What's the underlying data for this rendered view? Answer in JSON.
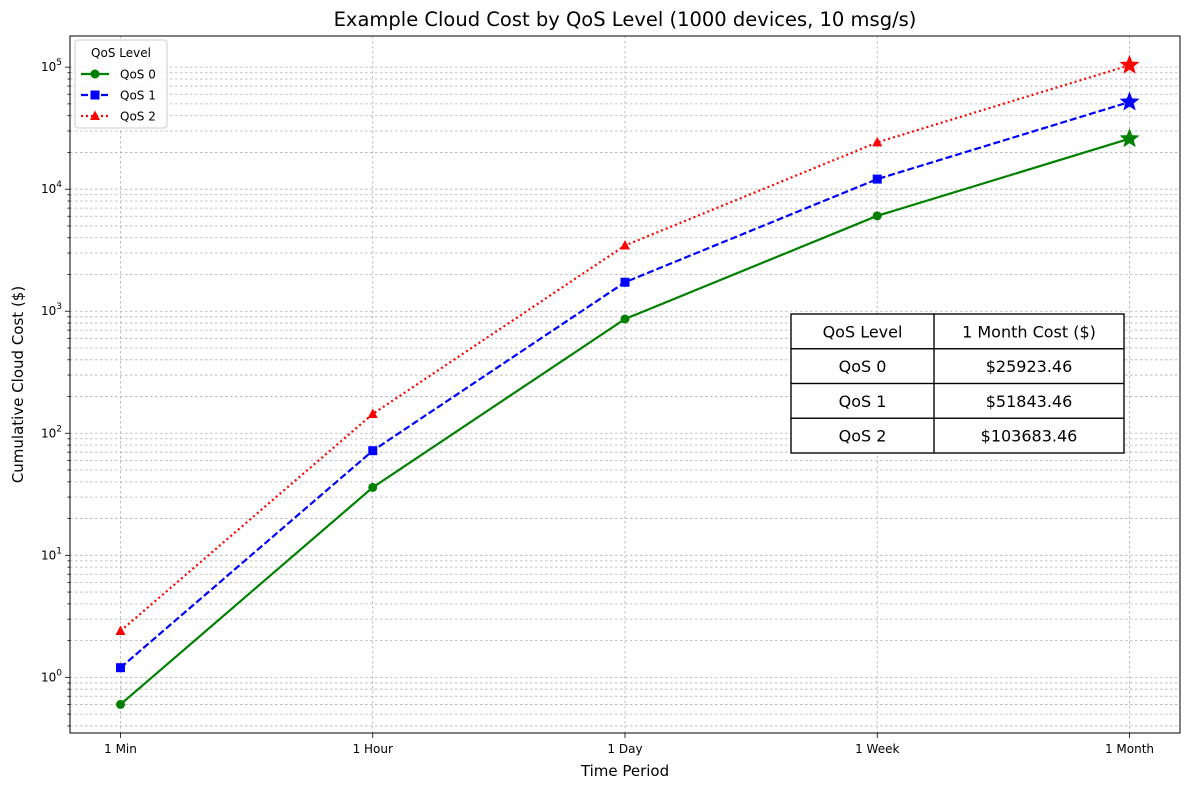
{
  "chart_data": {
    "type": "line",
    "title": "Example Cloud Cost by QoS Level (1000 devices, 10 msg/s)",
    "xlabel": "Time Period",
    "ylabel": "Cumulative Cloud Cost ($)",
    "yscale": "log",
    "ylim": [
      0.35,
      180000
    ],
    "y_ticks": [
      {
        "value": 1,
        "base": "10",
        "exp": "0"
      },
      {
        "value": 10,
        "base": "10",
        "exp": "1"
      },
      {
        "value": 100,
        "base": "10",
        "exp": "2"
      },
      {
        "value": 1000,
        "base": "10",
        "exp": "3"
      },
      {
        "value": 10000,
        "base": "10",
        "exp": "4"
      },
      {
        "value": 100000,
        "base": "10",
        "exp": "5"
      }
    ],
    "categories": [
      "1 Min",
      "1 Hour",
      "1 Day",
      "1 Week",
      "1 Month"
    ],
    "grid": true,
    "legend": {
      "title": "QoS Level",
      "placement": "top-left"
    },
    "series": [
      {
        "name": "QoS 0",
        "color": "#008000",
        "marker": "circle",
        "linestyle": "solid",
        "values": [
          0.6,
          36,
          864,
          6048,
          25923.46
        ]
      },
      {
        "name": "QoS 1",
        "color": "#0000ff",
        "marker": "square",
        "linestyle": "dashed",
        "values": [
          1.2,
          72,
          1728,
          12096,
          51843.46
        ]
      },
      {
        "name": "QoS 2",
        "color": "#ff0000",
        "marker": "triangle",
        "linestyle": "dotted",
        "values": [
          2.4,
          144,
          3456,
          24192,
          103683.46
        ]
      }
    ],
    "end_marker": "star",
    "table": {
      "headers": [
        "QoS Level",
        "1 Month Cost ($)"
      ],
      "rows": [
        [
          "QoS 0",
          "$25923.46"
        ],
        [
          "QoS 1",
          "$51843.46"
        ],
        [
          "QoS 2",
          "$103683.46"
        ]
      ]
    }
  }
}
